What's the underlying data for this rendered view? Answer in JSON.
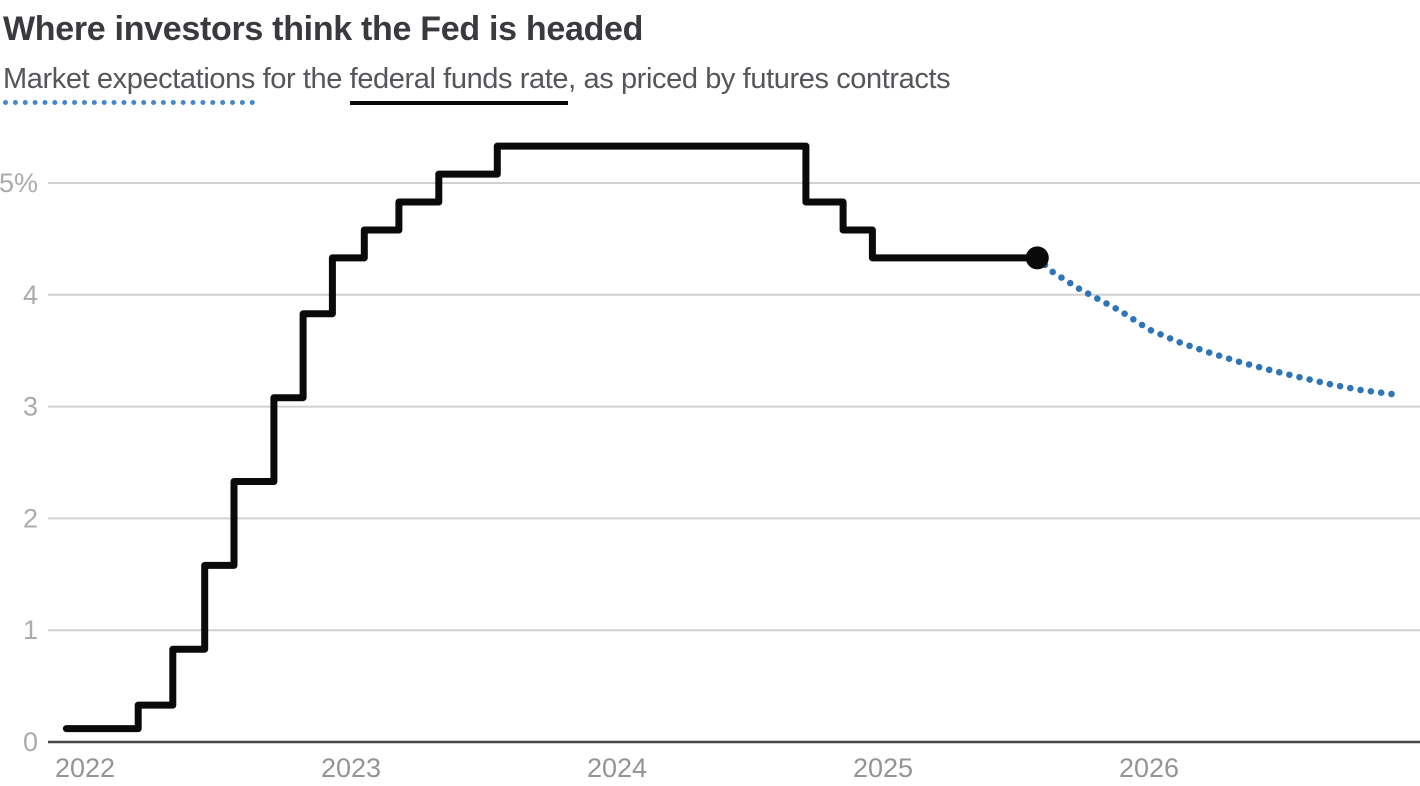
{
  "header": {
    "title": "Where investors think the Fed is headed",
    "subtitle_segments": [
      {
        "text": "Market expectations",
        "underline": "dotted-blue"
      },
      {
        "text": " for the ",
        "underline": "none"
      },
      {
        "text": "federal funds rate",
        "underline": "solid-black"
      },
      {
        "text": ", as priced by futures contracts",
        "underline": "none"
      }
    ]
  },
  "colors": {
    "title_text": "#3a3a3e",
    "subtitle_text": "#55555a",
    "dotted_underline": "#4688c4",
    "solid_underline": "#0a0a0a",
    "history_line": "#0a0a0a",
    "projection_dots": "#2e75b5",
    "gridline": "#d0d0d0",
    "axis_line": "#454545",
    "y_tick_label": "#ababab",
    "x_tick_label": "#949494",
    "marker_dot": "#0a0a0a"
  },
  "chart_data": {
    "type": "line",
    "title": "Where investors think the Fed is headed",
    "subtitle": "Market expectations for the federal funds rate, as priced by futures contracts",
    "xlabel": "",
    "ylabel": "",
    "xlim": [
      2021.93,
      2027.0
    ],
    "ylim": [
      0,
      5.45
    ],
    "grid": "horizontal",
    "legend": "none",
    "y_ticks": [
      {
        "value": 0,
        "label": "0"
      },
      {
        "value": 1,
        "label": "1"
      },
      {
        "value": 2,
        "label": "2"
      },
      {
        "value": 3,
        "label": "3"
      },
      {
        "value": 4,
        "label": "4"
      },
      {
        "value": 5,
        "label": "5%"
      }
    ],
    "x_ticks": [
      {
        "value": 2022,
        "label": "2022"
      },
      {
        "value": 2023,
        "label": "2023"
      },
      {
        "value": 2024,
        "label": "2024"
      },
      {
        "value": 2025,
        "label": "2025"
      },
      {
        "value": 2026,
        "label": "2026"
      }
    ],
    "series": [
      {
        "name": "federal-funds-rate-history",
        "style": "step",
        "color": "#0a0a0a",
        "width": 7,
        "points": [
          [
            2021.93,
            0.12
          ],
          [
            2022.2,
            0.33
          ],
          [
            2022.33,
            0.83
          ],
          [
            2022.45,
            1.58
          ],
          [
            2022.56,
            2.33
          ],
          [
            2022.71,
            3.08
          ],
          [
            2022.82,
            3.83
          ],
          [
            2022.93,
            4.33
          ],
          [
            2023.05,
            4.58
          ],
          [
            2023.18,
            4.83
          ],
          [
            2023.33,
            5.08
          ],
          [
            2023.55,
            5.33
          ],
          [
            2024.71,
            4.83
          ],
          [
            2024.85,
            4.58
          ],
          [
            2024.96,
            4.33
          ],
          [
            2025.58,
            4.33
          ]
        ]
      },
      {
        "name": "market-implied-projection",
        "style": "dotted",
        "color": "#2e75b5",
        "width": 6.5,
        "points": [
          [
            2025.58,
            4.33
          ],
          [
            2025.64,
            4.2
          ],
          [
            2025.74,
            4.05
          ],
          [
            2025.89,
            3.86
          ],
          [
            2026.0,
            3.69
          ],
          [
            2026.12,
            3.57
          ],
          [
            2026.23,
            3.48
          ],
          [
            2026.34,
            3.4
          ],
          [
            2026.45,
            3.33
          ],
          [
            2026.57,
            3.26
          ],
          [
            2026.68,
            3.2
          ],
          [
            2026.79,
            3.15
          ],
          [
            2026.92,
            3.11
          ]
        ]
      }
    ],
    "marker": {
      "t": 2025.58,
      "value": 4.33
    }
  }
}
